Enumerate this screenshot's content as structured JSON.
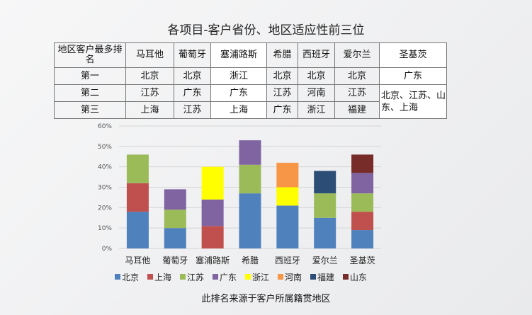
{
  "title": "各项目-客户省份、地区适应性前三位",
  "table": {
    "header": [
      "地区客户最多排名",
      "马耳他",
      "葡萄牙",
      "塞浦路斯",
      "希腊",
      "西班牙",
      "爱尔兰",
      "圣基茨"
    ],
    "rows": [
      [
        "第一",
        "北京",
        "北京",
        "浙江",
        "北京",
        "北京",
        "北京",
        "广东"
      ],
      [
        "第二",
        "江苏",
        "广东",
        "广东",
        "江苏",
        "河南",
        "江苏",
        "北京、江苏、山东、上海"
      ],
      [
        "第三",
        "上海",
        "江苏",
        "上海",
        "广东",
        "浙江",
        "福建"
      ]
    ]
  },
  "chart_data": {
    "type": "bar",
    "stacked": true,
    "categories": [
      "马耳他",
      "葡萄牙",
      "塞浦路斯",
      "希腊",
      "西班牙",
      "爱尔兰",
      "圣基茨"
    ],
    "ylim": [
      0,
      60
    ],
    "yticks": [
      "0%",
      "10%",
      "20%",
      "30%",
      "40%",
      "50%",
      "60%"
    ],
    "legend_position": "bottom",
    "series": [
      {
        "name": "北京",
        "color": "#4f81bd",
        "values": [
          18,
          10,
          0,
          27,
          21,
          15,
          9
        ]
      },
      {
        "name": "上海",
        "color": "#c0504d",
        "values": [
          14,
          0,
          11,
          0,
          0,
          0,
          9
        ]
      },
      {
        "name": "江苏",
        "color": "#9bbb59",
        "values": [
          14,
          9,
          0,
          14,
          0,
          12,
          9
        ]
      },
      {
        "name": "广东",
        "color": "#8064a2",
        "values": [
          0,
          10,
          13,
          12,
          0,
          0,
          10
        ]
      },
      {
        "name": "浙江",
        "color": "#ffff00",
        "values": [
          0,
          0,
          16,
          0,
          9,
          0,
          0
        ]
      },
      {
        "name": "河南",
        "color": "#f79646",
        "values": [
          0,
          0,
          0,
          0,
          12,
          0,
          0
        ]
      },
      {
        "name": "福建",
        "color": "#2c4d75",
        "values": [
          0,
          0,
          0,
          0,
          0,
          11,
          0
        ]
      },
      {
        "name": "山东",
        "color": "#772c2a",
        "values": [
          0,
          0,
          0,
          0,
          0,
          0,
          9
        ]
      }
    ]
  },
  "footer": "此排名来源于客户所属籍贯地区"
}
